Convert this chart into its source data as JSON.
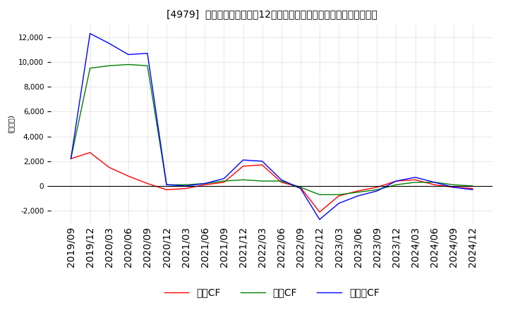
{
  "title": "[4979]  キャッシュフローの12か月移動合計の対前年同期増減額の推移",
  "ylabel": "(百万円)",
  "ylim": [
    -3000,
    13000
  ],
  "yticks": [
    -2000,
    0,
    2000,
    4000,
    6000,
    8000,
    10000,
    12000
  ],
  "x_labels": [
    "2019/09",
    "2019/12",
    "2020/03",
    "2020/06",
    "2020/09",
    "2020/12",
    "2021/03",
    "2021/06",
    "2021/09",
    "2021/12",
    "2022/03",
    "2022/06",
    "2022/09",
    "2022/12",
    "2023/03",
    "2023/06",
    "2023/09",
    "2023/12",
    "2024/03",
    "2024/06",
    "2024/09",
    "2024/12"
  ],
  "operating_cf": [
    2200,
    2700,
    1500,
    800,
    200,
    -300,
    -200,
    100,
    300,
    1600,
    1700,
    300,
    -100,
    -2100,
    -800,
    -400,
    -100,
    400,
    500,
    100,
    -100,
    -200
  ],
  "investing_cf": [
    2200,
    9500,
    9700,
    9800,
    9700,
    100,
    100,
    200,
    400,
    500,
    400,
    400,
    -100,
    -700,
    -700,
    -500,
    -300,
    100,
    300,
    300,
    100,
    0
  ],
  "free_cf": [
    2200,
    12300,
    11500,
    10600,
    10700,
    100,
    0,
    200,
    600,
    2100,
    2000,
    500,
    -200,
    -2700,
    -1400,
    -800,
    -400,
    400,
    700,
    300,
    -100,
    -300
  ],
  "operating_color": "#ff0000",
  "investing_color": "#008000",
  "free_color": "#0000ff",
  "background_color": "#ffffff",
  "grid_color": "#aaaaaa",
  "title_fontsize": 10.5,
  "axis_fontsize": 7.5,
  "legend_fontsize": 9
}
